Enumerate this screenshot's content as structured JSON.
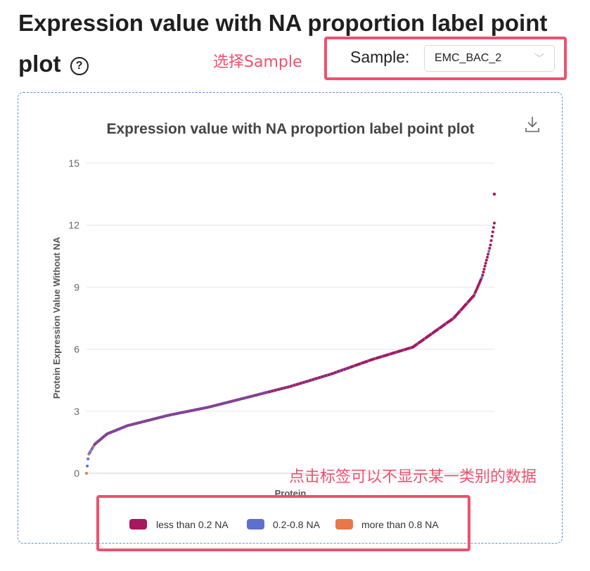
{
  "page": {
    "title": "Expression value with NA proportion label point plot",
    "help_icon": "help-circle-icon"
  },
  "annotations": {
    "select_sample": "选择Sample",
    "legend_hint": "点击标签可以不显示某一类别的数据"
  },
  "sample_select": {
    "label": "Sample:",
    "value": "EMC_BAC_2",
    "icon": "chevron-down-icon"
  },
  "toolbar": {
    "download_icon": "download-icon"
  },
  "chart_data": {
    "type": "scatter",
    "title": "Expression value with NA proportion label point plot",
    "xlabel": "Protein",
    "ylabel": "Protein Expression Value Without NA",
    "ylim": [
      0,
      15
    ],
    "yticks": [
      0,
      3,
      6,
      9,
      12,
      15
    ],
    "grid": true,
    "legend_position": "bottom",
    "profile": {
      "x": [
        0,
        0.005,
        0.02,
        0.05,
        0.1,
        0.2,
        0.3,
        0.4,
        0.5,
        0.6,
        0.7,
        0.75,
        0.8,
        0.85,
        0.9,
        0.95,
        0.97,
        0.99,
        1.0
      ],
      "y": [
        0,
        0.9,
        1.4,
        1.9,
        2.3,
        2.8,
        3.2,
        3.7,
        4.2,
        4.8,
        5.5,
        5.8,
        6.1,
        6.8,
        7.5,
        8.6,
        9.5,
        11.0,
        12.1
      ]
    },
    "outlier": {
      "x": 1.0,
      "y": 13.5
    },
    "series": [
      {
        "name": "less than 0.2 NA",
        "color": "#a8185c"
      },
      {
        "name": "0.2-0.8 NA",
        "color": "#5e6fcd"
      },
      {
        "name": "more than 0.8 NA",
        "color": "#e8774a"
      }
    ]
  }
}
